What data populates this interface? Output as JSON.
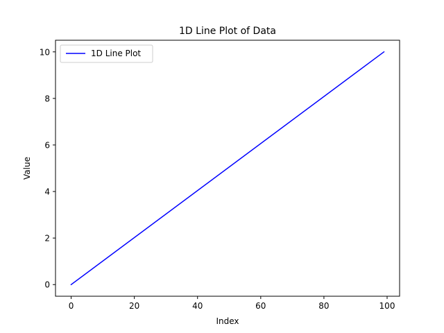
{
  "chart_data": {
    "type": "line",
    "title": "1D Line Plot of Data",
    "xlabel": "Index",
    "ylabel": "Value",
    "xlim": [
      -4.95,
      103.95
    ],
    "ylim": [
      -0.5,
      10.5
    ],
    "xticks": [
      0,
      20,
      40,
      60,
      80,
      100
    ],
    "yticks": [
      0,
      2,
      4,
      6,
      8,
      10
    ],
    "grid": false,
    "legend_position": "upper-left",
    "series": [
      {
        "name": "1D Line Plot",
        "color": "#0000ff",
        "x": [
          0,
          99
        ],
        "y": [
          0,
          10
        ]
      }
    ]
  }
}
